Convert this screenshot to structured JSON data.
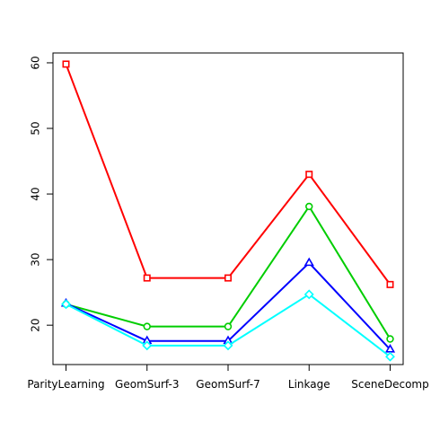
{
  "chart_data": {
    "type": "line",
    "title": "",
    "xlabel": "",
    "ylabel": "",
    "categories": [
      "ParityLearning",
      "GeomSurf-3",
      "GeomSurf-7",
      "Linkage",
      "SceneDecomp"
    ],
    "ylim": [
      14,
      61.5
    ],
    "yticks": [
      20,
      30,
      40,
      50,
      60
    ],
    "ytick_labels": [
      "20",
      "30",
      "40",
      "50",
      "60"
    ],
    "grid": false,
    "legend": "none",
    "series": [
      {
        "marker": "square",
        "color": "#ff0000",
        "values": [
          59.8,
          27.2,
          27.2,
          43.0,
          26.2
        ]
      },
      {
        "marker": "circle",
        "color": "#00cd00",
        "values": [
          23.2,
          19.8,
          19.8,
          38.1,
          17.9
        ]
      },
      {
        "marker": "triangle",
        "color": "#0000ff",
        "values": [
          23.3,
          17.6,
          17.6,
          29.5,
          16.3
        ]
      },
      {
        "marker": "diamond",
        "color": "#00ffff",
        "values": [
          23.2,
          16.9,
          16.9,
          24.7,
          15.2
        ]
      }
    ]
  }
}
